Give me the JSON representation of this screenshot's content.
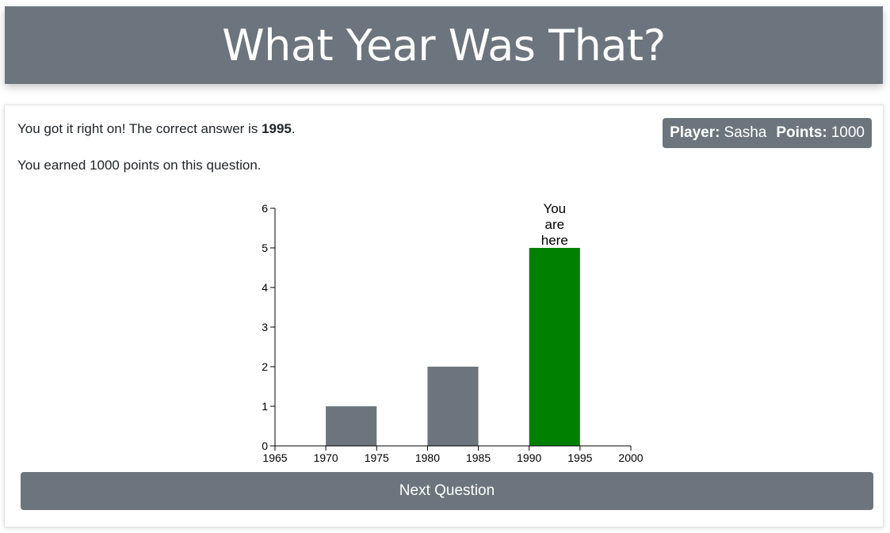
{
  "header": {
    "title": "What Year Was That?"
  },
  "result": {
    "message_prefix": "You got it right on! The correct answer is ",
    "correct_answer": "1995",
    "message_suffix": ".",
    "points_message": "You earned 1000 points on this question."
  },
  "player_badge": {
    "player_label": "Player:",
    "player_name": "Sasha",
    "points_label": "Points:",
    "points_value": "1000"
  },
  "chart_data": {
    "type": "bar",
    "x_ticks": [
      1965,
      1970,
      1975,
      1980,
      1985,
      1990,
      1995,
      2000
    ],
    "y_ticks": [
      0,
      1,
      2,
      3,
      4,
      5,
      6
    ],
    "xlim": [
      1965,
      2000
    ],
    "ylim": [
      0,
      6
    ],
    "bins": [
      {
        "start": 1970,
        "end": 1975,
        "count": 1,
        "highlight": false
      },
      {
        "start": 1980,
        "end": 1985,
        "count": 2,
        "highlight": false
      },
      {
        "start": 1990,
        "end": 1995,
        "count": 5,
        "highlight": true
      }
    ],
    "annotation": {
      "lines": [
        "You",
        "are",
        "here"
      ]
    },
    "bar_color": "#6c757d",
    "highlight_color": "#008000",
    "grid": false
  },
  "buttons": {
    "next_label": "Next Question"
  },
  "colors": {
    "header_bg": "#6c757d",
    "badge_bg": "#6c757d",
    "button_bg": "#6c757d"
  }
}
